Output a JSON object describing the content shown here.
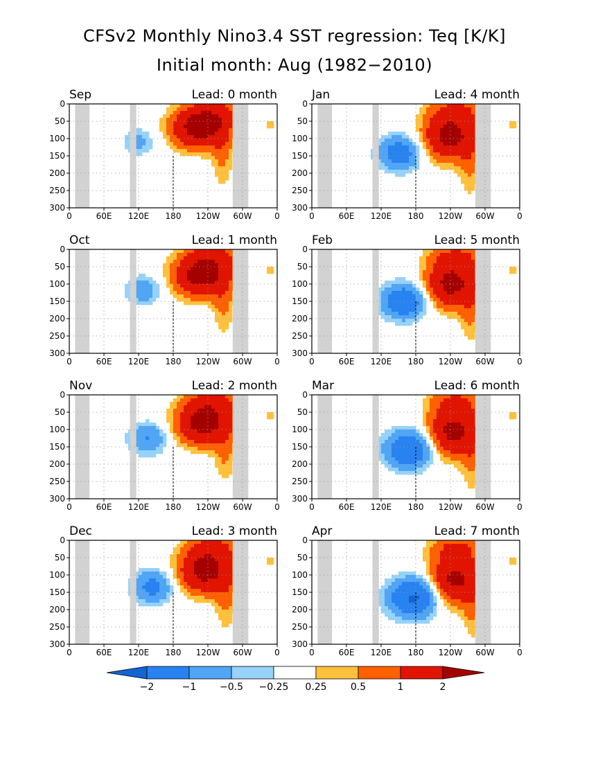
{
  "title": "CFSv2 Monthly Nino3.4 SST regression: Teq [K/K]",
  "subtitle": "Initial month: Aug (1982−2010)",
  "lead_prefix": "Lead:",
  "lead_suffix": "month",
  "x_ticks": [
    "0",
    "60E",
    "120E",
    "180",
    "120W",
    "60W",
    "0"
  ],
  "y_ticks": [
    "0",
    "50",
    "100",
    "150",
    "200",
    "250",
    "300"
  ],
  "colorbar": {
    "labels": [
      "−2",
      "−1",
      "−0.5",
      "−0.25",
      "0.25",
      "0.5",
      "1",
      "2"
    ],
    "colors": [
      "#1464d2",
      "#2882f0",
      "#50a5f5",
      "#96d2fa",
      "#ffffff",
      "#ffc03c",
      "#ff6000",
      "#e11400",
      "#a50000"
    ]
  },
  "chart_data": [
    {
      "type": "heatmap",
      "month": "Sep",
      "lead": "0"
    },
    {
      "type": "heatmap",
      "month": "Jan",
      "lead": "4"
    },
    {
      "type": "heatmap",
      "month": "Oct",
      "lead": "1"
    },
    {
      "type": "heatmap",
      "month": "Feb",
      "lead": "5"
    },
    {
      "type": "heatmap",
      "month": "Nov",
      "lead": "2"
    },
    {
      "type": "heatmap",
      "month": "Mar",
      "lead": "6"
    },
    {
      "type": "heatmap",
      "month": "Dec",
      "lead": "3"
    },
    {
      "type": "heatmap",
      "month": "Apr",
      "lead": "7"
    }
  ]
}
